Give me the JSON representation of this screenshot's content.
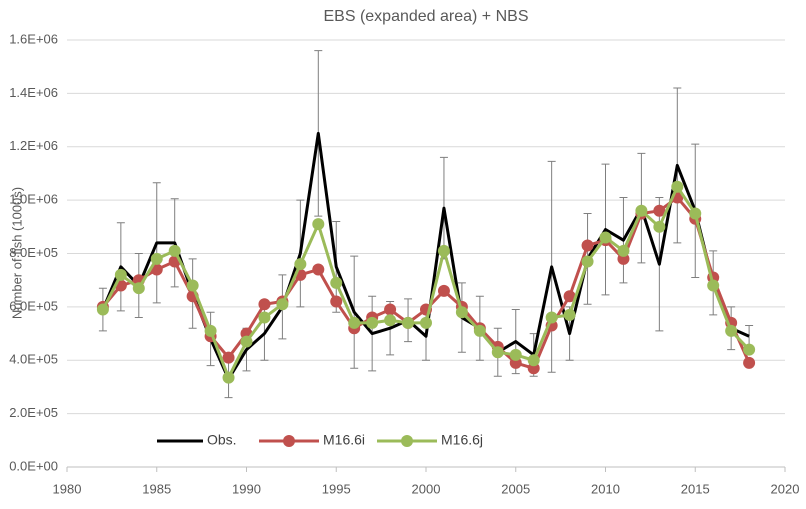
{
  "chart_data": {
    "type": "line",
    "title": "EBS (expanded area) + NBS",
    "y_label": "Number of fish (1000s)",
    "x": [
      1982,
      1983,
      1984,
      1985,
      1986,
      1987,
      1988,
      1989,
      1990,
      1991,
      1992,
      1993,
      1994,
      1995,
      1996,
      1997,
      1998,
      1999,
      2000,
      2001,
      2002,
      2003,
      2004,
      2005,
      2006,
      2007,
      2008,
      2009,
      2010,
      2011,
      2012,
      2013,
      2014,
      2015,
      2016,
      2017,
      2018
    ],
    "series": [
      {
        "name": "Obs.",
        "color": "#000000",
        "markers": false,
        "values": [
          590000,
          750000,
          680000,
          840000,
          840000,
          650000,
          480000,
          330000,
          440000,
          500000,
          600000,
          800000,
          1250000,
          750000,
          580000,
          500000,
          520000,
          550000,
          490000,
          970000,
          560000,
          520000,
          430000,
          470000,
          420000,
          750000,
          500000,
          780000,
          890000,
          850000,
          970000,
          760000,
          1130000,
          960000,
          690000,
          520000,
          490000
        ],
        "errors": [
          80000,
          165000,
          120000,
          225000,
          165000,
          130000,
          100000,
          70000,
          80000,
          100000,
          120000,
          200000,
          310000,
          170000,
          210000,
          140000,
          100000,
          80000,
          90000,
          190000,
          130000,
          120000,
          90000,
          120000,
          80000,
          395000,
          100000,
          170000,
          245000,
          160000,
          205000,
          250000,
          290000,
          250000,
          120000,
          80000,
          40000
        ]
      },
      {
        "name": "M16.6i",
        "color": "#c0504d",
        "markers": true,
        "values": [
          600000,
          680000,
          700000,
          740000,
          770000,
          640000,
          490000,
          410000,
          500000,
          610000,
          620000,
          720000,
          740000,
          620000,
          520000,
          560000,
          590000,
          540000,
          590000,
          660000,
          600000,
          520000,
          450000,
          390000,
          370000,
          530000,
          640000,
          830000,
          850000,
          780000,
          950000,
          960000,
          1010000,
          930000,
          710000,
          540000,
          390000
        ]
      },
      {
        "name": "M16.6j",
        "color": "#9bbb59",
        "markers": true,
        "values": [
          590000,
          720000,
          670000,
          780000,
          810000,
          680000,
          510000,
          335000,
          470000,
          560000,
          610000,
          760000,
          910000,
          690000,
          540000,
          540000,
          550000,
          540000,
          540000,
          810000,
          580000,
          510000,
          430000,
          420000,
          400000,
          560000,
          570000,
          770000,
          860000,
          810000,
          960000,
          900000,
          1050000,
          950000,
          680000,
          510000,
          440000
        ]
      }
    ],
    "xlim": [
      1980,
      2020
    ],
    "xticks": [
      1980,
      1985,
      1990,
      1995,
      2000,
      2005,
      2010,
      2015,
      2020
    ],
    "ylim": [
      0,
      1600000
    ],
    "yticks": [
      {
        "value": 0,
        "label": "0.0E+00"
      },
      {
        "value": 200000,
        "label": "2.0E+05"
      },
      {
        "value": 400000,
        "label": "4.0E+05"
      },
      {
        "value": 600000,
        "label": "6.0E+05"
      },
      {
        "value": 800000,
        "label": "8.0E+05"
      },
      {
        "value": 1000000,
        "label": "1.0E+06"
      },
      {
        "value": 1200000,
        "label": "1.2E+06"
      },
      {
        "value": 1400000,
        "label": "1.4E+06"
      },
      {
        "value": 1600000,
        "label": "1.6E+06"
      }
    ],
    "grid": true,
    "legend": "lower-left"
  }
}
